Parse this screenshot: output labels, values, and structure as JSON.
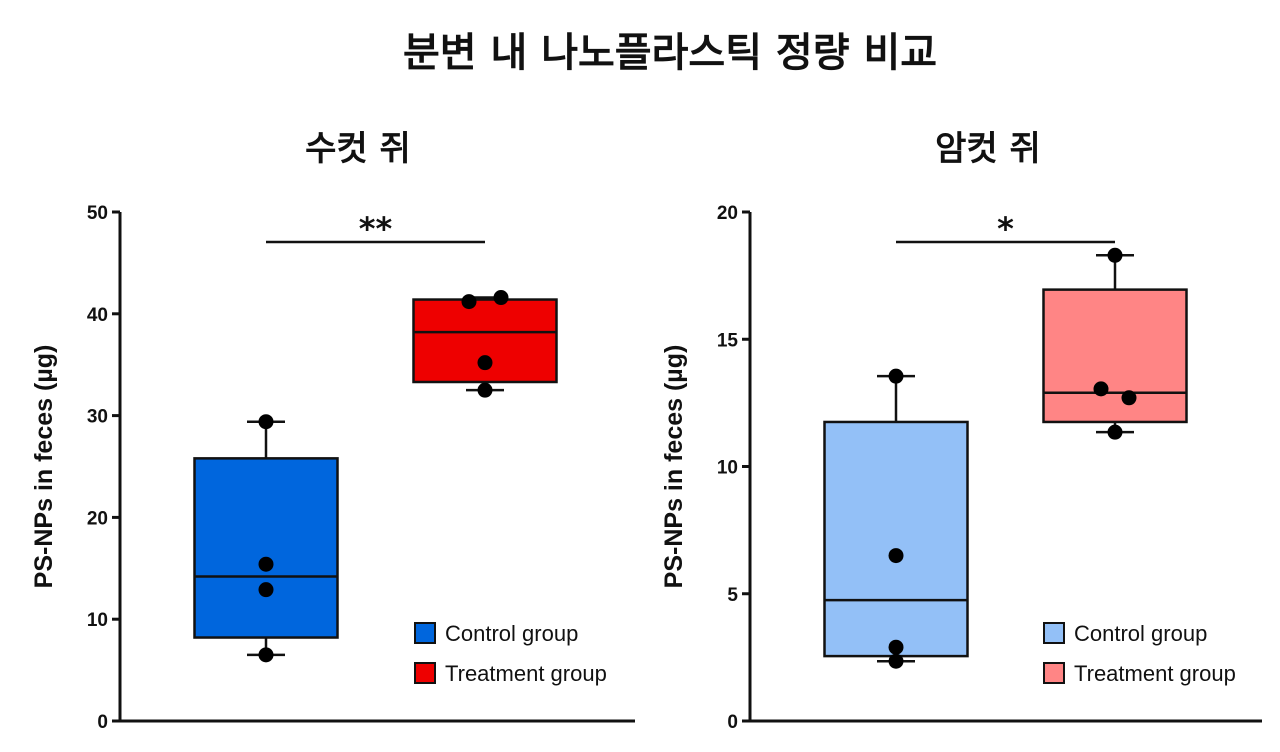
{
  "figure": {
    "title": "분변 내 나노플라스틱 정량 비교"
  },
  "chart_data": [
    {
      "type": "box",
      "title": "수컷 쥐",
      "ylabel": "PS-NPs in feces (µg)",
      "ylim": [
        0,
        50
      ],
      "yticks": [
        0,
        10,
        20,
        30,
        40,
        50
      ],
      "legend_position": "bottom-right",
      "significance": "**",
      "series": [
        {
          "name": "Control group",
          "color": "#0066dd",
          "min": 6.5,
          "q1": 8.2,
          "median": 14.2,
          "q3": 25.8,
          "max": 29.4,
          "points": [
            29.4,
            15.4,
            12.9,
            6.5
          ]
        },
        {
          "name": "Treatment group",
          "color": "#ee0000",
          "min": 32.5,
          "q1": 33.3,
          "median": 38.2,
          "q3": 41.4,
          "max": 41.6,
          "points": [
            41.2,
            41.6,
            35.2,
            32.5
          ]
        }
      ]
    },
    {
      "type": "box",
      "title": "암컷 쥐",
      "ylabel": "PS-NPs in feces (µg)",
      "ylim": [
        0,
        20
      ],
      "yticks": [
        0,
        5,
        10,
        15,
        20
      ],
      "legend_position": "bottom-right",
      "significance": "*",
      "series": [
        {
          "name": "Control group",
          "color": "#93c0f7",
          "min": 2.35,
          "q1": 2.55,
          "median": 4.75,
          "q3": 11.75,
          "max": 13.55,
          "points": [
            13.55,
            6.5,
            2.9,
            2.35
          ]
        },
        {
          "name": "Treatment group",
          "color": "#ff8585",
          "min": 11.35,
          "q1": 11.75,
          "median": 12.9,
          "q3": 16.95,
          "max": 18.3,
          "points": [
            18.3,
            13.05,
            12.7,
            11.35
          ]
        }
      ]
    }
  ]
}
